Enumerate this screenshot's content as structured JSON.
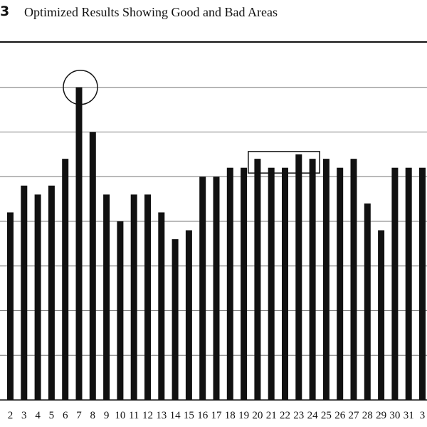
{
  "figure": {
    "number": "3",
    "title": "Optimized Results Showing Good and Bad Areas"
  },
  "chart_data": {
    "type": "bar",
    "title": "Optimized Results Showing Good and Bad Areas",
    "xlabel": "",
    "ylabel": "",
    "categories": [
      "2",
      "3",
      "4",
      "5",
      "6",
      "7",
      "8",
      "9",
      "10",
      "11",
      "12",
      "13",
      "14",
      "15",
      "16",
      "17",
      "18",
      "19",
      "20",
      "21",
      "22",
      "23",
      "24",
      "25",
      "26",
      "27",
      "28",
      "29",
      "30",
      "31",
      "3"
    ],
    "values": [
      4.2,
      4.8,
      4.6,
      4.8,
      5.4,
      7.0,
      6.0,
      4.6,
      4.0,
      4.6,
      4.6,
      4.2,
      3.6,
      3.8,
      5.0,
      5.0,
      5.2,
      5.2,
      5.4,
      5.2,
      5.2,
      5.5,
      5.4,
      5.4,
      5.2,
      5.4,
      4.4,
      3.8,
      5.2,
      5.2,
      5.2
    ],
    "ylim": [
      0,
      8
    ],
    "grid": true,
    "bar_color": "#111111",
    "annotations": [
      {
        "shape": "circle",
        "category": "7"
      },
      {
        "shape": "rectangle",
        "categories": [
          "20",
          "24"
        ]
      }
    ]
  }
}
